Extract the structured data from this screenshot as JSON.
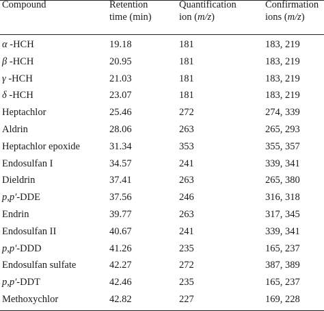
{
  "headers": [
    {
      "line1": "Compound",
      "line2": ""
    },
    {
      "line1": "Retention",
      "line2": "time (min)"
    },
    {
      "line1": "Quantification",
      "line2": "ion (m/z)"
    },
    {
      "line1": "Confirmation",
      "line2": "ions (m/z)"
    }
  ],
  "rows": [
    {
      "compound": "α -HCH",
      "rt": "19.18",
      "quant": "181",
      "conf": "183, 219"
    },
    {
      "compound": "β -HCH",
      "rt": "20.95",
      "quant": "181",
      "conf": "183, 219"
    },
    {
      "compound": "γ -HCH",
      "rt": "21.03",
      "quant": "181",
      "conf": "183, 219"
    },
    {
      "compound": "δ -HCH",
      "rt": "23.07",
      "quant": "181",
      "conf": "183, 219"
    },
    {
      "compound": "Heptachlor",
      "rt": "25.46",
      "quant": "272",
      "conf": "274, 339"
    },
    {
      "compound": "Aldrin",
      "rt": "28.06",
      "quant": "263",
      "conf": "265, 293"
    },
    {
      "compound": "Heptachlor epoxide",
      "rt": "31.34",
      "quant": "353",
      "conf": "355, 357"
    },
    {
      "compound": "Endosulfan I",
      "rt": "34.57",
      "quant": "241",
      "conf": "339, 341"
    },
    {
      "compound": "Dieldrin",
      "rt": "37.41",
      "quant": "263",
      "conf": "265, 380"
    },
    {
      "compound": "p,p′-DDE",
      "rt": "37.56",
      "quant": "246",
      "conf": "316, 318"
    },
    {
      "compound": "Endrin",
      "rt": "39.77",
      "quant": "263",
      "conf": "317, 345"
    },
    {
      "compound": "Endosulfan II",
      "rt": "40.67",
      "quant": "241",
      "conf": "339, 341"
    },
    {
      "compound": "p,p′-DDD",
      "rt": "41.26",
      "quant": "235",
      "conf": "165, 237"
    },
    {
      "compound": "Endosulfan sulfate",
      "rt": "42.27",
      "quant": "272",
      "conf": "387, 389"
    },
    {
      "compound": "p,p′-DDT",
      "rt": "42.46",
      "quant": "235",
      "conf": "165, 237"
    },
    {
      "compound": "Methoxychlor",
      "rt": "42.82",
      "quant": "227",
      "conf": "169, 228"
    }
  ]
}
